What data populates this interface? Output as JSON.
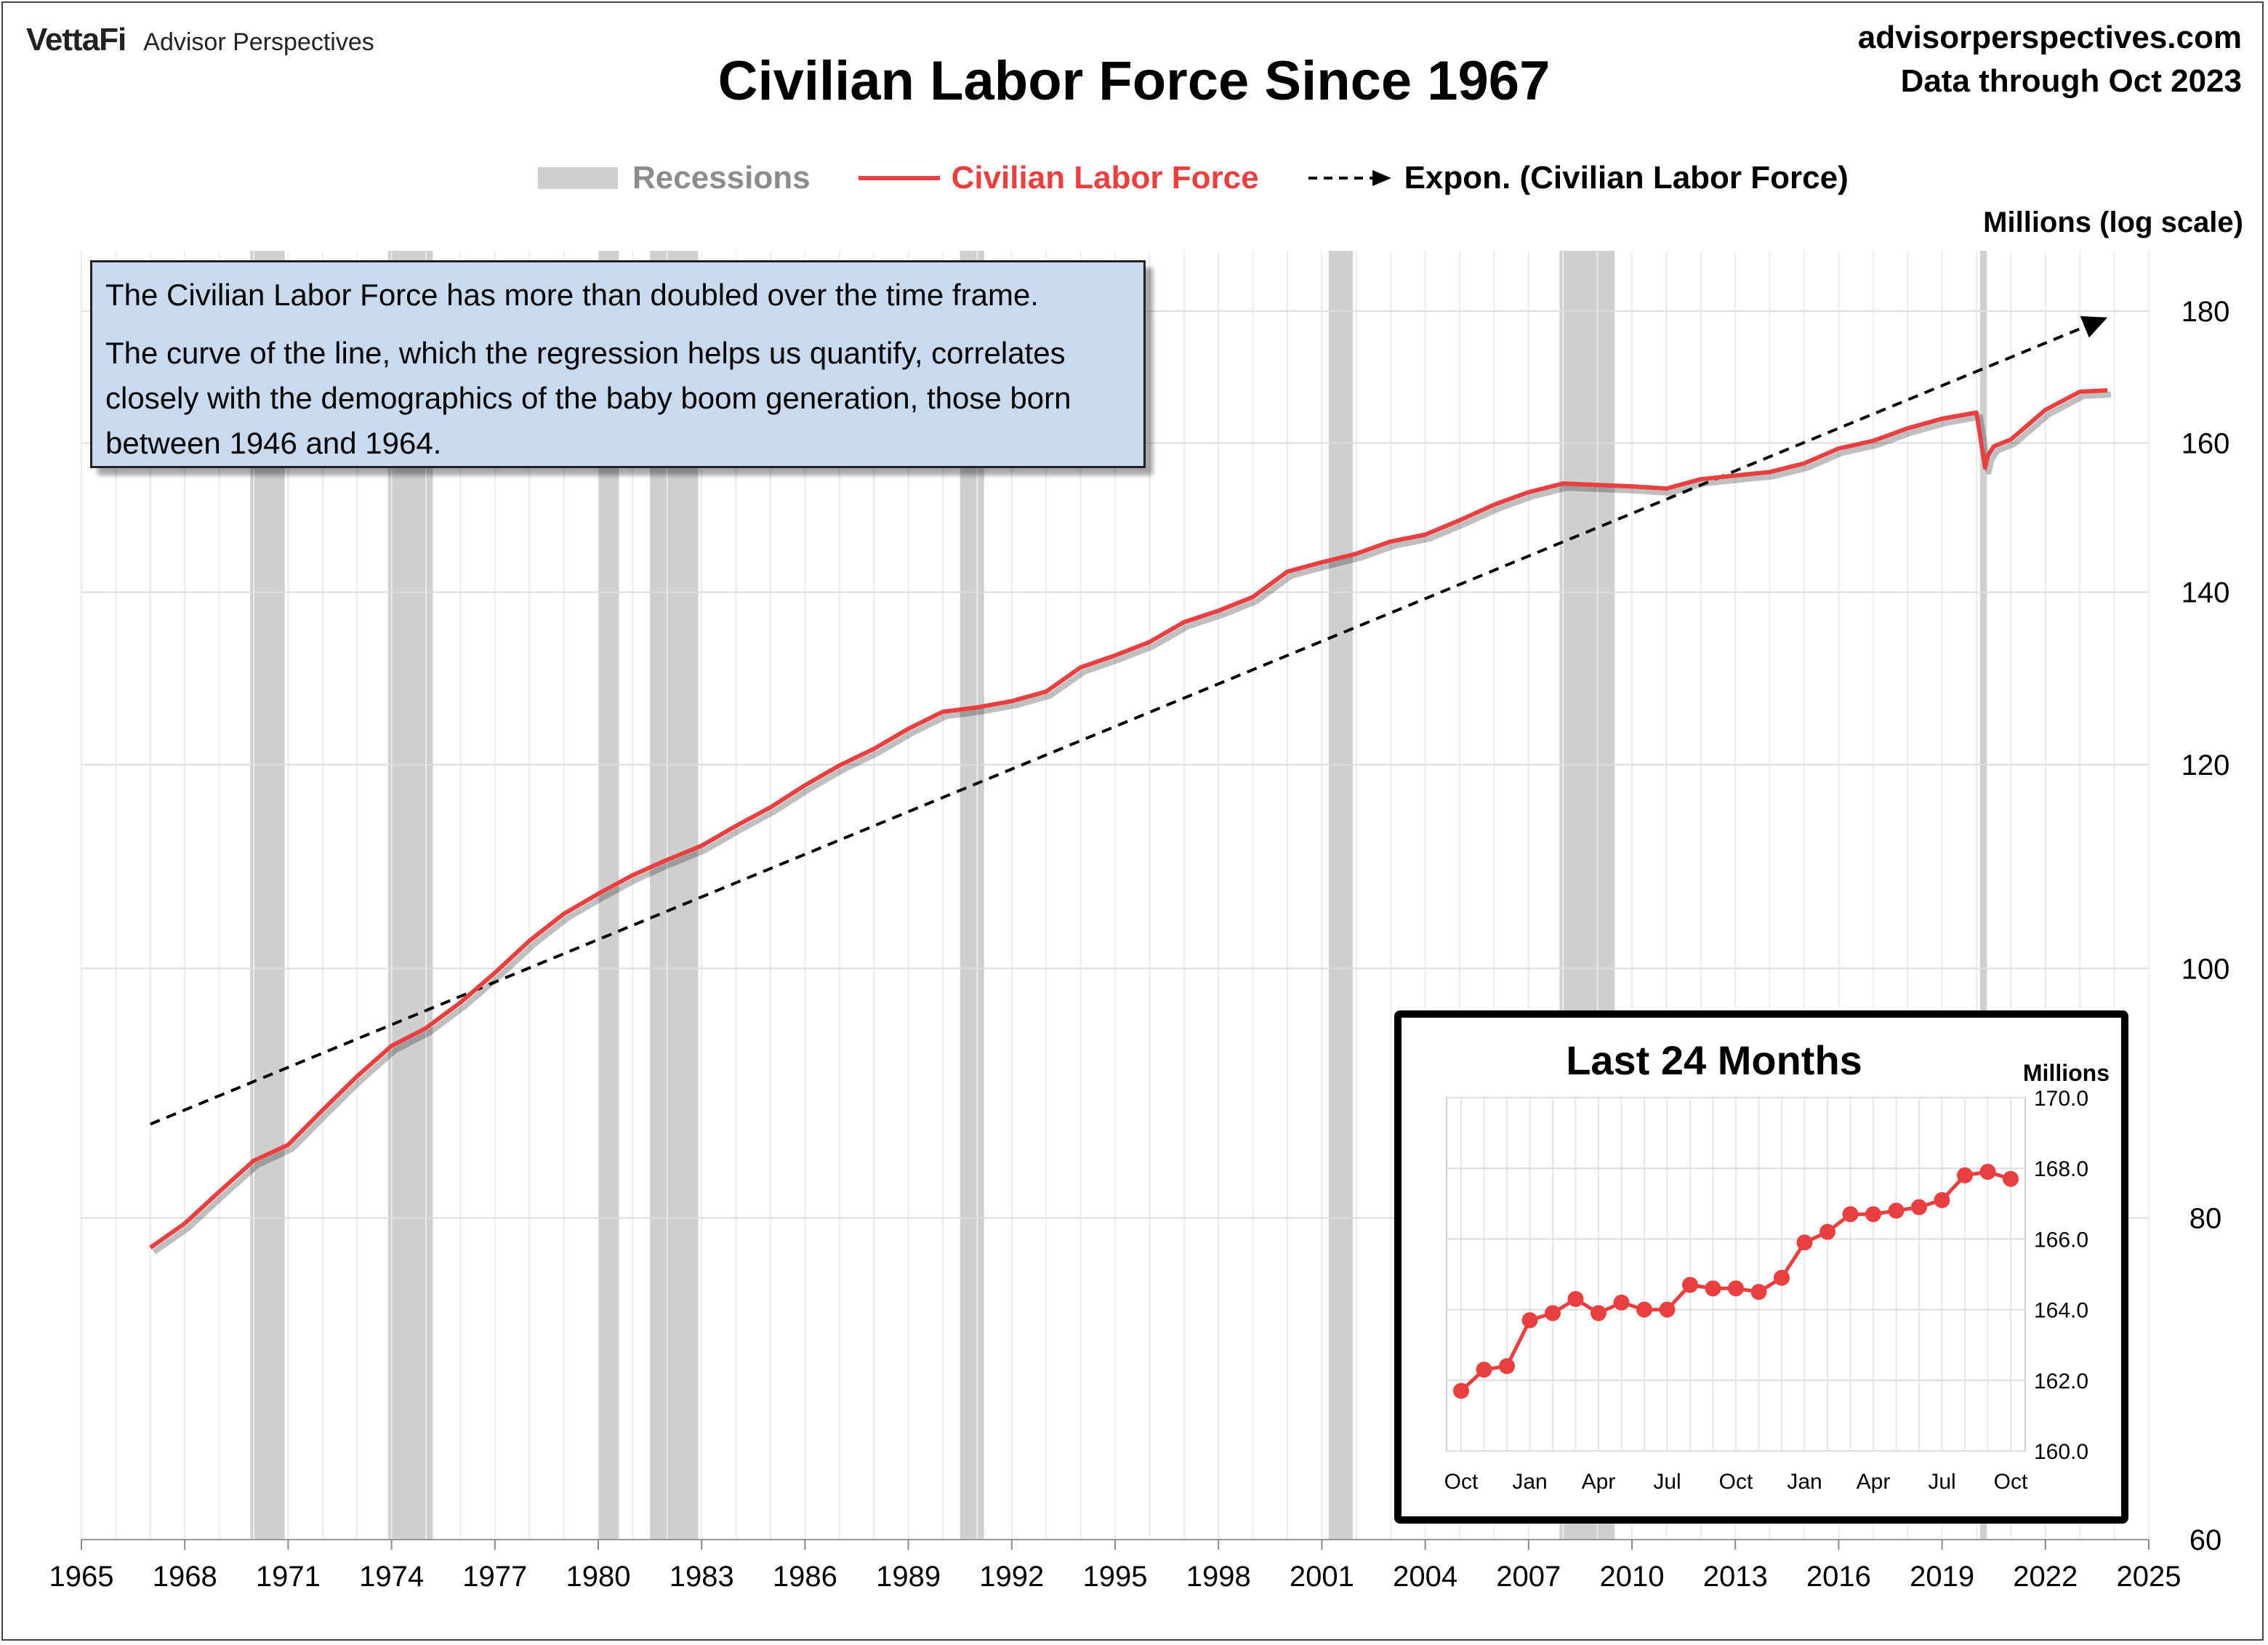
{
  "brand": {
    "logo": "VettaFi",
    "name": "Advisor Perspectives"
  },
  "source": {
    "site": "advisorperspectives.com",
    "data_through": "Data through Oct 2023"
  },
  "note": {
    "line1": "The Civilian Labor Force has more than doubled over the time frame.",
    "line2": "The curve of the line, which the regression helps us quantify, correlates closely with the demographics of the baby boom generation, those born between 1946 and 1964."
  },
  "colors": {
    "series": "#e84040",
    "recession": "#cfcfcf",
    "trend": "#000000",
    "note_bg": "#c9d9ee",
    "grid": "#dddddd"
  },
  "chart_data": [
    {
      "type": "line",
      "title": "Civilian Labor Force Since 1967",
      "ylabel": "Millions (log scale)",
      "y_scale": "log",
      "xlim": [
        1965,
        2025
      ],
      "ylim": [
        60,
        190
      ],
      "x_ticks": [
        1965,
        1968,
        1971,
        1974,
        1977,
        1980,
        1983,
        1986,
        1989,
        1992,
        1995,
        1998,
        2001,
        2004,
        2007,
        2010,
        2013,
        2016,
        2019,
        2022,
        2025
      ],
      "y_ticks": [
        60,
        80,
        100,
        120,
        140,
        160,
        180
      ],
      "legend": [
        "Recessions",
        "Civilian Labor Force",
        "Expon. (Civilian Labor Force)"
      ],
      "legend_position": "top-center",
      "recessions": [
        [
          1969.9,
          1970.9
        ],
        [
          1973.9,
          1975.2
        ],
        [
          1980.0,
          1980.6
        ],
        [
          1981.5,
          1982.9
        ],
        [
          1990.5,
          1991.2
        ],
        [
          2001.2,
          2001.9
        ],
        [
          2007.9,
          2009.5
        ],
        [
          2020.1,
          2020.3
        ]
      ],
      "series": [
        {
          "name": "Civilian Labor Force",
          "x": [
            1967.0,
            1968.0,
            1969.0,
            1970.0,
            1971.0,
            1972.0,
            1973.0,
            1974.0,
            1975.0,
            1976.0,
            1977.0,
            1978.0,
            1979.0,
            1980.0,
            1981.0,
            1982.0,
            1983.0,
            1984.0,
            1985.0,
            1986.0,
            1987.0,
            1988.0,
            1989.0,
            1990.0,
            1991.0,
            1992.0,
            1993.0,
            1994.0,
            1995.0,
            1996.0,
            1997.0,
            1998.0,
            1999.0,
            2000.0,
            2001.0,
            2002.0,
            2003.0,
            2004.0,
            2005.0,
            2006.0,
            2007.0,
            2008.0,
            2009.0,
            2010.0,
            2011.0,
            2012.0,
            2013.0,
            2014.0,
            2015.0,
            2016.0,
            2017.0,
            2018.0,
            2019.0,
            2020.0,
            2020.25,
            2020.33,
            2020.5,
            2021.0,
            2022.0,
            2023.0,
            2023.8
          ],
          "values": [
            77.9,
            79.6,
            81.9,
            84.2,
            85.4,
            88.1,
            90.8,
            93.3,
            94.8,
            97.0,
            99.6,
            102.5,
            105.0,
            106.9,
            108.7,
            110.2,
            111.6,
            113.6,
            115.5,
            117.8,
            119.9,
            121.7,
            123.9,
            125.8,
            126.3,
            127.0,
            128.1,
            130.9,
            132.3,
            133.9,
            136.3,
            137.7,
            139.4,
            142.6,
            143.8,
            144.9,
            146.5,
            147.4,
            149.3,
            151.4,
            153.1,
            154.3,
            154.1,
            153.9,
            153.6,
            154.9,
            155.4,
            155.9,
            157.1,
            159.2,
            160.3,
            162.1,
            163.5,
            164.4,
            156.5,
            158.2,
            159.5,
            160.5,
            164.8,
            167.5,
            167.7
          ]
        },
        {
          "name": "Expon. (Civilian Labor Force)",
          "x": [
            1967.0,
            2023.8
          ],
          "values": [
            87.0,
            179.0
          ],
          "style": "dashed-arrow"
        }
      ]
    },
    {
      "type": "line",
      "title": "Last 24 Months",
      "ylabel": "Millions",
      "ylim": [
        160.0,
        170.0
      ],
      "y_ticks": [
        "160.0",
        "162.0",
        "164.0",
        "166.0",
        "168.0",
        "170.0"
      ],
      "categories": [
        "Oct",
        "Nov",
        "Dec",
        "Jan",
        "Feb",
        "Mar",
        "Apr",
        "May",
        "Jun",
        "Jul",
        "Aug",
        "Sep",
        "Oct",
        "Nov",
        "Dec",
        "Jan",
        "Feb",
        "Mar",
        "Apr",
        "May",
        "Jun",
        "Jul",
        "Aug",
        "Sep",
        "Oct"
      ],
      "tick_labels": [
        "Oct",
        "Jan",
        "Apr",
        "Jul",
        "Oct",
        "Jan",
        "Apr",
        "Jul",
        "Oct"
      ],
      "series": [
        {
          "name": "Civilian Labor Force",
          "values": [
            161.7,
            162.3,
            162.4,
            163.7,
            163.9,
            164.3,
            163.9,
            164.2,
            164.0,
            164.0,
            164.7,
            164.6,
            164.6,
            164.5,
            164.9,
            165.9,
            166.2,
            166.7,
            166.7,
            166.8,
            166.9,
            167.1,
            167.8,
            167.9,
            167.7
          ]
        }
      ]
    }
  ]
}
